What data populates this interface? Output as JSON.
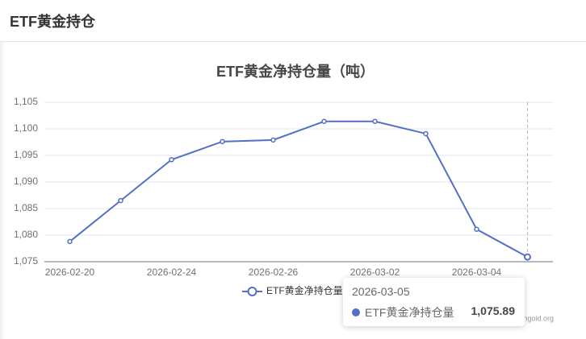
{
  "header": {
    "title": "ETF黄金持仓"
  },
  "chart_data": {
    "type": "line",
    "title": "ETF黄金净持仓量（吨）",
    "categories": [
      "2026-02-20",
      null,
      "2026-02-24",
      null,
      "2026-02-26",
      null,
      "2026-03-02",
      null,
      "2026-03-04",
      "2026-03-05"
    ],
    "series": [
      {
        "name": "ETF黄金净持仓量",
        "color": "#5470c6",
        "values": [
          1078.8,
          1086.5,
          1094.2,
          1097.6,
          1097.9,
          1101.4,
          1101.4,
          1099.1,
          1081.1,
          1075.89
        ],
        "value_labels": [
          null,
          null,
          null,
          null,
          null,
          null,
          null,
          null,
          null,
          "1,075.89"
        ]
      }
    ],
    "ylim": [
      1075,
      1105
    ],
    "yticks": [
      {
        "value": 1075,
        "label": "1,075"
      },
      {
        "value": 1080,
        "label": "1,080"
      },
      {
        "value": 1085,
        "label": "1,085"
      },
      {
        "value": 1090,
        "label": "1,090"
      },
      {
        "value": 1095,
        "label": "1,095"
      },
      {
        "value": 1100,
        "label": "1,100"
      },
      {
        "value": 1105,
        "label": "1,105"
      }
    ],
    "grid": true,
    "watermark": "ngoid.org"
  }
}
